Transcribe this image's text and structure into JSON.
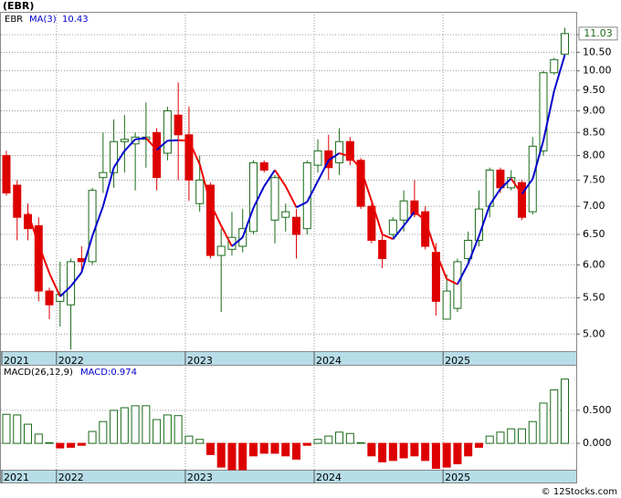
{
  "chart_data": [
    {
      "type": "candlestick",
      "title": "(EBR)",
      "legend": {
        "symbol": "EBR",
        "ma_name": "MA(3)",
        "ma_value": "10.43"
      },
      "categories": [
        "2021",
        null,
        null,
        null,
        null,
        "2022",
        null,
        null,
        null,
        null,
        null,
        null,
        null,
        null,
        null,
        null,
        null,
        "2023",
        null,
        null,
        null,
        null,
        null,
        null,
        null,
        null,
        null,
        null,
        null,
        "2024",
        null,
        null,
        null,
        null,
        null,
        null,
        null,
        null,
        null,
        null,
        null,
        "2025",
        null,
        null,
        null,
        null,
        null,
        null,
        null,
        null,
        null,
        null,
        null
      ],
      "open": [
        8.0,
        7.4,
        6.85,
        6.65,
        5.6,
        5.45,
        5.4,
        6.1,
        6.05,
        7.55,
        7.65,
        8.3,
        8.25,
        8.35,
        8.5,
        8.05,
        8.9,
        8.45,
        7.05,
        7.4,
        6.15,
        6.25,
        6.3,
        6.55,
        7.85,
        6.75,
        6.8,
        6.8,
        6.6,
        7.8,
        8.1,
        7.85,
        8.3,
        7.9,
        7.0,
        6.4,
        6.5,
        6.75,
        7.1,
        6.9,
        6.2,
        5.2,
        5.35,
        6.1,
        6.4,
        7.0,
        7.7,
        7.35,
        7.45,
        6.9,
        8.1,
        9.95,
        10.45
      ],
      "high": [
        8.1,
        7.5,
        7.05,
        6.8,
        5.65,
        6.05,
        6.1,
        6.3,
        7.35,
        8.5,
        8.8,
        8.9,
        8.5,
        9.2,
        8.6,
        9.1,
        9.7,
        9.1,
        8.0,
        7.45,
        6.6,
        6.9,
        6.95,
        7.9,
        7.9,
        7.6,
        7.05,
        6.95,
        7.9,
        8.35,
        8.45,
        8.6,
        8.4,
        7.95,
        7.05,
        6.55,
        6.8,
        7.3,
        7.5,
        7.0,
        6.35,
        5.85,
        6.1,
        6.55,
        7.3,
        7.75,
        7.75,
        7.7,
        7.5,
        8.4,
        10.0,
        10.35,
        11.2
      ],
      "low": [
        7.2,
        6.4,
        6.4,
        5.45,
        5.2,
        5.1,
        4.8,
        5.9,
        6.0,
        7.25,
        7.35,
        7.65,
        7.3,
        7.75,
        7.3,
        7.9,
        7.5,
        7.1,
        6.9,
        6.1,
        5.3,
        6.15,
        6.2,
        6.5,
        7.65,
        6.35,
        6.55,
        6.1,
        6.5,
        7.65,
        7.5,
        7.6,
        7.8,
        6.95,
        6.35,
        5.95,
        6.45,
        6.55,
        6.8,
        6.25,
        5.25,
        5.2,
        5.3,
        6.0,
        6.3,
        6.8,
        7.25,
        7.3,
        6.75,
        6.85,
        8.0,
        9.9,
        10.45
      ],
      "close": [
        7.25,
        6.8,
        6.6,
        5.6,
        5.4,
        5.55,
        6.05,
        6.05,
        7.3,
        7.65,
        8.3,
        8.35,
        8.4,
        8.4,
        7.55,
        9.0,
        8.45,
        7.5,
        7.5,
        6.15,
        6.3,
        6.45,
        6.6,
        7.85,
        7.7,
        7.55,
        6.9,
        6.5,
        7.85,
        8.1,
        7.75,
        8.3,
        7.9,
        7.0,
        6.4,
        6.1,
        6.75,
        7.1,
        6.85,
        6.3,
        5.45,
        5.6,
        6.05,
        6.4,
        6.95,
        7.7,
        7.35,
        7.55,
        6.8,
        8.2,
        9.95,
        10.3,
        11.03
      ],
      "ma": {
        "values": [
          null,
          null,
          6.88,
          6.33,
          5.87,
          5.52,
          5.67,
          5.88,
          6.47,
          7.0,
          7.75,
          8.1,
          8.35,
          8.38,
          8.12,
          8.32,
          8.33,
          8.32,
          7.82,
          7.05,
          6.65,
          6.3,
          6.45,
          6.97,
          7.38,
          7.7,
          7.38,
          6.98,
          7.08,
          7.48,
          7.9,
          8.05,
          7.98,
          7.73,
          7.1,
          6.5,
          6.42,
          6.65,
          6.9,
          6.75,
          6.2,
          5.78,
          5.7,
          6.02,
          6.47,
          7.02,
          7.33,
          7.53,
          7.23,
          7.52,
          8.32,
          9.48,
          10.43
        ],
        "up_color": "#0000cc",
        "down_color": "#ee0000"
      },
      "up_color": "#1a6b1a",
      "down_color": "#dd0000",
      "log": true,
      "ylim": [
        4.78,
        11.68
      ],
      "yticks": [
        {
          "value": 5,
          "label": "5.00"
        },
        {
          "value": 5.5,
          "label": "5.50"
        },
        {
          "value": 6,
          "label": "6.00"
        },
        {
          "value": 6.5,
          "label": "6.50"
        },
        {
          "value": 7,
          "label": "7.00"
        },
        {
          "value": 7.5,
          "label": "7.50"
        },
        {
          "value": 8,
          "label": "8.00"
        },
        {
          "value": 8.5,
          "label": "8.50"
        },
        {
          "value": 9,
          "label": "9.00"
        },
        {
          "value": 9.5,
          "label": "9.50"
        },
        {
          "value": 10,
          "label": "10.00"
        },
        {
          "value": 10.5,
          "label": "10.50"
        },
        {
          "value": 11,
          "label": "11.00"
        }
      ],
      "last_label": "11.03",
      "grid": true
    },
    {
      "type": "macd",
      "title": "MACD(26,12,9)",
      "value_text": "MACD:0.974",
      "categories": [
        "2021",
        null,
        null,
        null,
        null,
        "2022",
        null,
        null,
        null,
        null,
        null,
        null,
        null,
        null,
        null,
        null,
        null,
        "2023",
        null,
        null,
        null,
        null,
        null,
        null,
        null,
        null,
        null,
        null,
        null,
        "2024",
        null,
        null,
        null,
        null,
        null,
        null,
        null,
        null,
        null,
        null,
        null,
        "2025",
        null,
        null,
        null,
        null,
        null,
        null,
        null,
        null,
        null,
        null,
        null
      ],
      "values": [
        0.44,
        0.43,
        0.29,
        0.14,
        0.01,
        -0.07,
        -0.06,
        -0.03,
        0.18,
        0.33,
        0.5,
        0.54,
        0.57,
        0.57,
        0.36,
        0.43,
        0.42,
        0.11,
        0.06,
        -0.17,
        -0.36,
        -0.4,
        -0.4,
        -0.19,
        -0.15,
        -0.15,
        -0.19,
        -0.24,
        -0.03,
        0.06,
        0.11,
        0.17,
        0.15,
        0.01,
        -0.19,
        -0.28,
        -0.26,
        -0.22,
        -0.19,
        -0.26,
        -0.38,
        -0.36,
        -0.31,
        -0.19,
        -0.06,
        0.11,
        0.17,
        0.22,
        0.22,
        0.33,
        0.61,
        0.81,
        0.974
      ],
      "up_color": "#1a6b1a",
      "down_color": "#dd0000",
      "ylim": [
        -0.4,
        1.19
      ],
      "yticks": [
        {
          "value": 0.5,
          "label": "0.500"
        },
        {
          "value": 0,
          "label": "0.000"
        }
      ],
      "grid": true
    }
  ],
  "footer": "© 12Stocks.com"
}
